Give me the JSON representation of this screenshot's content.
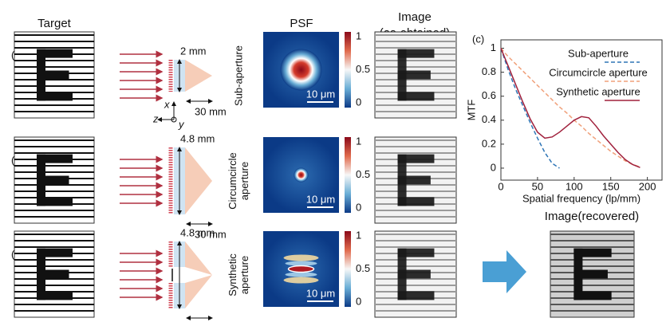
{
  "headers": {
    "target": "Target",
    "psf": "PSF",
    "image": [
      "Image",
      "(as-obtained)"
    ],
    "recovered": "Image(recovered)"
  },
  "rows": [
    {
      "label": "(a)",
      "aperture": [
        "Sub-aperture"
      ],
      "width": "2 mm",
      "distance": "30 mm",
      "scale_bar": "10 μm",
      "colorbar_ticks": [
        "1",
        "0.5",
        "0"
      ]
    },
    {
      "label": "(b)",
      "aperture": [
        "Circumcircle",
        "aperture"
      ],
      "width": "4.8 mm",
      "distance": "30 mm",
      "scale_bar": "10 μm",
      "colorbar_ticks": [
        "1",
        "0.5",
        "0"
      ]
    },
    {
      "label": "(d)",
      "aperture": [
        "Synthetic",
        "aperture"
      ],
      "width": "4.8 mm",
      "distance": "30 mm",
      "scale_bar": "10 μm",
      "colorbar_ticks": [
        "1",
        "0.5",
        "0"
      ]
    }
  ],
  "axes": {
    "x": "x",
    "z": "z",
    "y": "y"
  },
  "chart_label": "(c)",
  "chart_data": {
    "type": "line",
    "xlabel": "Spatial frequency (lp/mm)",
    "ylabel": "MTF",
    "x": [
      0,
      10,
      20,
      30,
      40,
      50,
      60,
      70,
      80,
      90,
      100,
      110,
      120,
      130,
      140,
      150,
      160,
      170,
      180,
      190,
      200
    ],
    "series": [
      {
        "name": "Sub-aperture",
        "color": "#2e75b6",
        "dash": true,
        "values": [
          1,
          0.82,
          0.66,
          0.52,
          0.38,
          0.25,
          0.13,
          0.04,
          0,
          null,
          null,
          null,
          null,
          null,
          null,
          null,
          null,
          null,
          null,
          null,
          null
        ]
      },
      {
        "name": "Circumcircle aperture",
        "color": "#f0a07a",
        "dash": true,
        "values": [
          1,
          0.93,
          0.87,
          0.81,
          0.75,
          0.69,
          0.63,
          0.57,
          0.51,
          0.46,
          0.4,
          0.35,
          0.29,
          0.24,
          0.19,
          0.14,
          0.1,
          0.06,
          0.03,
          0.01,
          null
        ]
      },
      {
        "name": "Synthetic aperture",
        "color": "#a0203c",
        "dash": false,
        "values": [
          1,
          0.85,
          0.7,
          0.55,
          0.41,
          0.3,
          0.25,
          0.26,
          0.3,
          0.35,
          0.4,
          0.43,
          0.42,
          0.35,
          0.27,
          0.2,
          0.13,
          0.07,
          0.03,
          0.005,
          null
        ]
      }
    ],
    "xlim": [
      0,
      220
    ],
    "ylim": [
      -0.1,
      1.07
    ],
    "xticks": [
      0,
      50,
      100,
      150,
      200
    ],
    "yticks": [
      0,
      0.2,
      0.4,
      0.6,
      0.8,
      1
    ],
    "legend": "upper right",
    "grid": false
  }
}
